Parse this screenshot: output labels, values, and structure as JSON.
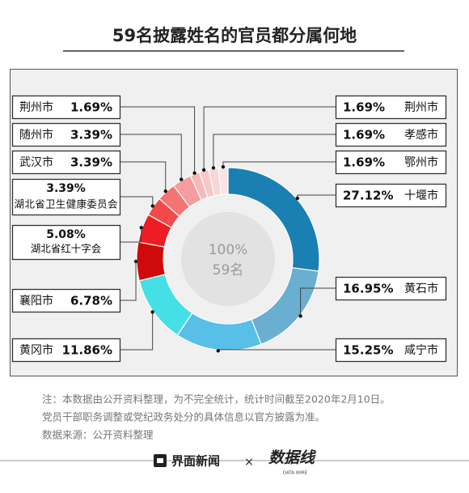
{
  "chart_data": {
    "type": "donut",
    "title": "59名披露姓名的官员都分属何地",
    "center_label": "100%",
    "center_sublabel": "59名",
    "categories": [
      "十堰市",
      "黄石市",
      "咸宁市",
      "黄冈市",
      "襄阳市",
      "湖北省红十字会",
      "湖北省卫生健康委员会",
      "武汉市",
      "随州市",
      "荆州市",
      "荆州市",
      "孝感市",
      "鄂州市"
    ],
    "values": [
      27.12,
      16.95,
      15.25,
      11.86,
      6.78,
      5.08,
      3.39,
      3.39,
      3.39,
      1.69,
      1.69,
      1.69,
      1.69
    ],
    "value_labels": [
      "27.12%",
      "16.95%",
      "15.25%",
      "11.86%",
      "6.78%",
      "5.08%",
      "3.39%",
      "3.39%",
      "3.39%",
      "1.69%",
      "1.69%",
      "1.69%",
      "1.69%"
    ],
    "colors": [
      "#1a80b2",
      "#6aaed0",
      "#58bfe8",
      "#44e0e6",
      "#cf0a0a",
      "#ee1c24",
      "#f24a4a",
      "#f47474",
      "#f59c9c",
      "#f7b8b8",
      "#f6c8c8",
      "#f8d6d6",
      "#fbe4e4"
    ]
  },
  "notes": [
    "注：本数据由公开资料整理，为不完全统计，统计时间截至2020年2月10日。",
    "党员干部职务调整或党纪政务处分的具体信息以官方披露为准。"
  ],
  "source": "数据来源：公开资料整理",
  "brand": "界面新闻",
  "brand_join": "×",
  "partner": "数据线",
  "partner_tagline": "DATA WIRE"
}
